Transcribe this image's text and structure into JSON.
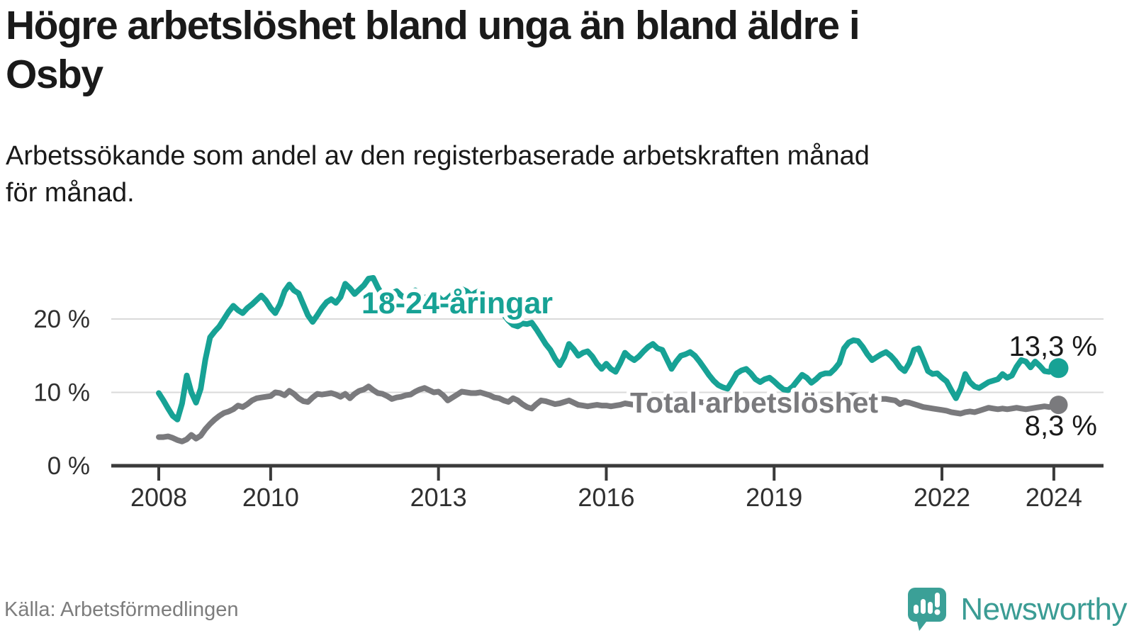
{
  "header": {
    "title_line1": "Högre arbetslöshet bland unga än bland äldre i",
    "title_line2": "Osby",
    "subtitle_line1": "Arbetssökande som andel av den registerbaserade arbetskraften månad",
    "subtitle_line2": "för månad."
  },
  "footer": {
    "source": "Källa: Arbetsförmedlingen",
    "brand": "Newsworthy",
    "logo_icon": "newsworthy-speech-bubble-bar-chart-icon"
  },
  "colors": {
    "youth_line": "#17A295",
    "total_line": "#7A7A7D",
    "grid": "#DADADA",
    "axis": "#3A3A3A",
    "tick_text": "#2F2F2F",
    "value_text": "#1A1A1A",
    "source_text": "#7D7D7D",
    "brand_teal": "#3BA097",
    "background": "#FFFFFF"
  },
  "chart_data": {
    "type": "line",
    "title": "Högre arbetslöshet bland unga än bland äldre i Osby",
    "subtitle": "Arbetssökande som andel av den registerbaserade arbetskraften månad för månad.",
    "source": "Källa: Arbetsförmedlingen",
    "grid": "horizontal",
    "legend_position": "inline-labels",
    "x_axis": {
      "tick_labels": [
        "2008",
        "2010",
        "2013",
        "2016",
        "2019",
        "2022",
        "2024"
      ],
      "tick_years": [
        2008,
        2010,
        2013,
        2016,
        2019,
        2022,
        2024
      ],
      "range_years": [
        2008.0,
        2024.083
      ]
    },
    "y_axis": {
      "unit": "%",
      "tick_labels": [
        "0 %",
        "10 %",
        "20 %"
      ],
      "ticks": [
        0,
        10,
        20
      ],
      "range": [
        0,
        26
      ]
    },
    "start_month": "2008-01",
    "end_month": "2024-02",
    "series": [
      {
        "name": "18-24-åringar",
        "color": "#17A295",
        "end_value": 13.3,
        "end_value_label": "13,3 %",
        "values": [
          9.9,
          8.9,
          7.8,
          6.8,
          6.3,
          8.5,
          12.3,
          10.0,
          8.6,
          10.5,
          14.5,
          17.5,
          18.3,
          19.0,
          20.0,
          21.0,
          21.8,
          21.2,
          20.8,
          21.5,
          22.0,
          22.6,
          23.2,
          22.5,
          21.5,
          20.8,
          22.0,
          23.8,
          24.7,
          23.9,
          23.5,
          22.0,
          20.5,
          19.6,
          20.5,
          21.5,
          22.3,
          22.7,
          22.2,
          23.0,
          24.8,
          24.2,
          23.4,
          24.0,
          24.6,
          25.5,
          25.6,
          24.3,
          23.2,
          22.6,
          23.5,
          23.8,
          23.2,
          22.8,
          23.6,
          23.9,
          23.4,
          22.8,
          23.2,
          23.6,
          23.0,
          22.4,
          22.8,
          23.4,
          24.0,
          24.1,
          23.8,
          23.2,
          23.6,
          23.9,
          23.4,
          22.8,
          22.2,
          21.4,
          20.6,
          19.8,
          19.2,
          19.0,
          19.4,
          19.3,
          19.5,
          18.6,
          17.6,
          16.6,
          15.8,
          14.6,
          13.7,
          14.8,
          16.6,
          15.9,
          15.0,
          15.4,
          15.6,
          14.9,
          13.9,
          13.2,
          13.9,
          13.2,
          12.8,
          14.0,
          15.4,
          14.8,
          14.4,
          14.9,
          15.6,
          16.2,
          16.6,
          16.0,
          15.8,
          14.5,
          13.2,
          14.2,
          15.0,
          15.2,
          15.5,
          15.0,
          14.2,
          13.3,
          12.4,
          11.6,
          11.0,
          10.7,
          10.5,
          11.5,
          12.6,
          13.0,
          13.2,
          12.6,
          11.8,
          11.4,
          11.8,
          12.0,
          11.5,
          10.9,
          10.4,
          10.3,
          10.8,
          11.6,
          12.4,
          12.0,
          11.3,
          11.8,
          12.4,
          12.6,
          12.6,
          13.2,
          14.0,
          16.0,
          16.8,
          17.1,
          17.0,
          16.2,
          15.2,
          14.4,
          14.8,
          15.2,
          15.5,
          15.0,
          14.3,
          13.4,
          12.9,
          14.0,
          15.8,
          16.0,
          14.5,
          12.9,
          12.5,
          12.6,
          12.0,
          11.5,
          10.3,
          9.2,
          10.5,
          12.5,
          11.4,
          10.8,
          10.6,
          11.0,
          11.4,
          11.6,
          11.8,
          12.5,
          12.0,
          12.3,
          13.5,
          14.4,
          14.2,
          13.4,
          14.2,
          13.6,
          12.9,
          12.8,
          13.0,
          13.3
        ]
      },
      {
        "name": "Total arbetslöshet",
        "color": "#7A7A7D",
        "end_value": 8.3,
        "end_value_label": "8,3 %",
        "values": [
          3.9,
          3.9,
          4.0,
          3.8,
          3.5,
          3.3,
          3.6,
          4.2,
          3.7,
          4.1,
          5.0,
          5.7,
          6.3,
          6.8,
          7.2,
          7.4,
          7.7,
          8.2,
          8.0,
          8.4,
          8.9,
          9.2,
          9.3,
          9.4,
          9.5,
          10.0,
          9.9,
          9.6,
          10.2,
          9.8,
          9.2,
          8.8,
          8.7,
          9.3,
          9.8,
          9.7,
          9.8,
          9.9,
          9.7,
          9.4,
          9.8,
          9.2,
          9.8,
          10.2,
          10.4,
          10.8,
          10.3,
          9.9,
          9.8,
          9.5,
          9.1,
          9.3,
          9.4,
          9.6,
          9.7,
          10.1,
          10.4,
          10.6,
          10.3,
          10.0,
          10.1,
          9.6,
          8.9,
          9.3,
          9.7,
          10.1,
          10.0,
          9.9,
          9.9,
          10.0,
          9.8,
          9.6,
          9.3,
          9.2,
          8.9,
          8.7,
          9.2,
          8.9,
          8.4,
          8.0,
          7.8,
          8.4,
          8.9,
          8.8,
          8.6,
          8.4,
          8.5,
          8.7,
          8.9,
          8.6,
          8.3,
          8.2,
          8.1,
          8.2,
          8.3,
          8.2,
          8.2,
          8.1,
          8.2,
          8.3,
          8.5,
          8.4,
          8.3,
          8.5,
          8.7,
          8.8,
          8.9,
          8.8,
          8.8,
          8.7,
          8.6,
          8.7,
          8.9,
          9.0,
          8.9,
          8.8,
          8.7,
          8.6,
          8.5,
          8.5,
          8.4,
          8.3,
          8.2,
          8.3,
          8.5,
          8.4,
          8.3,
          8.2,
          8.1,
          8.2,
          8.3,
          8.3,
          8.3,
          8.2,
          8.1,
          8.1,
          8.3,
          8.5,
          8.6,
          8.5,
          8.3,
          8.4,
          8.5,
          8.6,
          8.6,
          8.7,
          8.9,
          9.3,
          9.5,
          9.6,
          9.5,
          9.3,
          9.1,
          9.0,
          9.0,
          9.1,
          9.1,
          9.0,
          8.9,
          8.4,
          8.7,
          8.6,
          8.4,
          8.2,
          8.0,
          7.9,
          7.8,
          7.7,
          7.6,
          7.5,
          7.3,
          7.2,
          7.1,
          7.3,
          7.4,
          7.3,
          7.5,
          7.7,
          7.9,
          7.8,
          7.7,
          7.8,
          7.7,
          7.8,
          7.9,
          7.8,
          7.7,
          7.8,
          7.9,
          8.0,
          8.1,
          8.0,
          8.1,
          8.3
        ]
      }
    ]
  }
}
